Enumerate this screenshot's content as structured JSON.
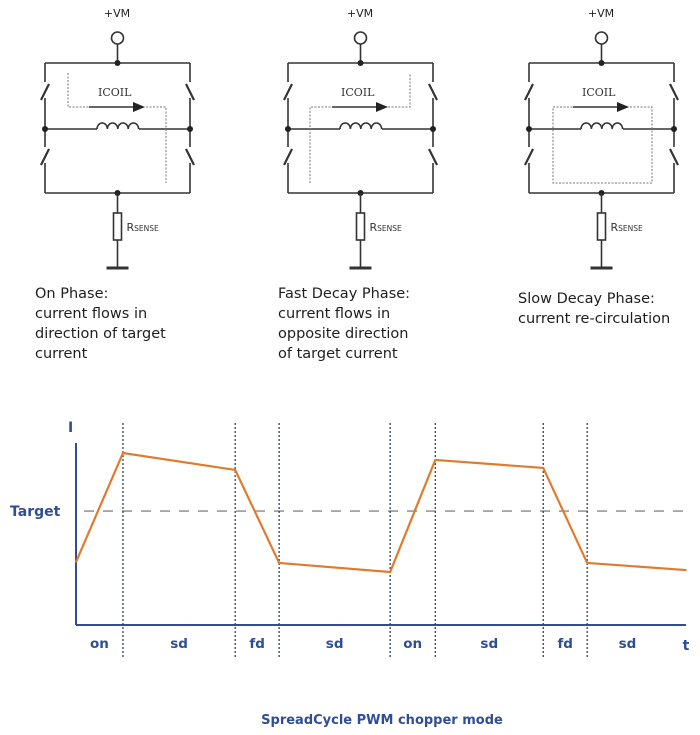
{
  "circuits": [
    {
      "supply_label": "+VM",
      "current_label": "ICOIL",
      "sense_label": "RSENSE",
      "path": "on",
      "caption": "On Phase:\ncurrent flows in\ndirection of target\ncurrent"
    },
    {
      "supply_label": "+VM",
      "current_label": "ICOIL",
      "sense_label": "RSENSE",
      "path": "fast",
      "caption": "Fast Decay Phase:\ncurrent flows in\nopposite direction\nof target current"
    },
    {
      "supply_label": "+VM",
      "current_label": "ICOIL",
      "sense_label": "RSENSE",
      "path": "slow",
      "caption": "Slow Decay Phase:\ncurrent re-circulation"
    }
  ],
  "chart_data": {
    "type": "line",
    "title": "SpreadCycle PWM chopper mode",
    "ylabel": "I",
    "xlabel": "t",
    "target_label": "Target",
    "target_level": 62.6,
    "xlim": [
      0,
      100
    ],
    "ylim": [
      0,
      100
    ],
    "phases": [
      "on",
      "sd",
      "fd",
      "sd",
      "on",
      "sd",
      "fd",
      "sd"
    ],
    "phase_boundaries": [
      7.7,
      26.1,
      33.3,
      51.5,
      58.9,
      76.6,
      83.8
    ],
    "series": [
      {
        "x": [
          0,
          7.7,
          26.1,
          33.3,
          51.5,
          58.9,
          76.6,
          83.8,
          100
        ],
        "y": [
          34.6,
          94.5,
          85.2,
          34.1,
          29.1,
          90.7,
          86.3,
          34.1,
          30.2
        ]
      }
    ],
    "colors": {
      "waveform": "#e07b2e",
      "axis": "#2f4e96",
      "target_line": "#9a9a9a",
      "labels": "#2f4e96"
    }
  }
}
